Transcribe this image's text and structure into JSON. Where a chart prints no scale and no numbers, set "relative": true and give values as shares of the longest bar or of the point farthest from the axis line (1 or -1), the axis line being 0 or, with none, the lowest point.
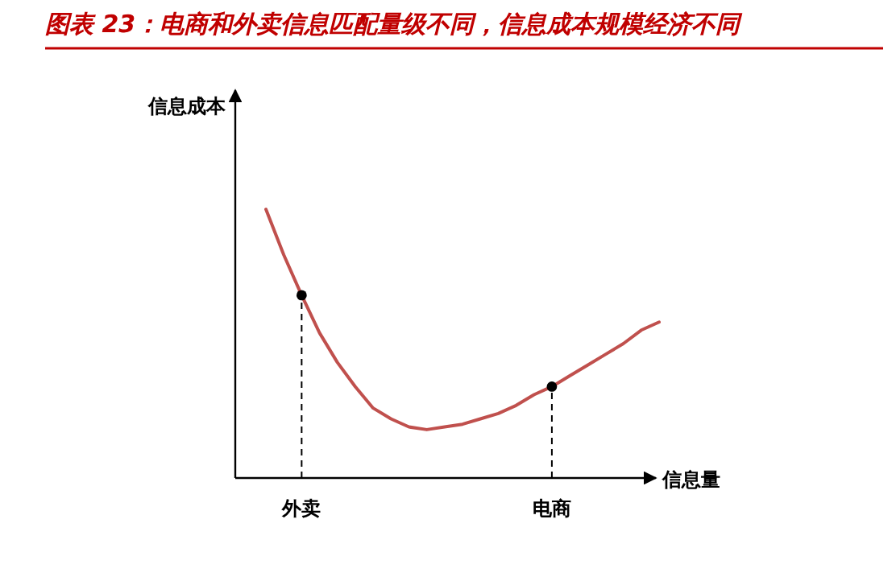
{
  "chart_data": {
    "type": "line",
    "relative": true,
    "title": "图表 23：电商和外卖信息匹配量级不同，信息成本规模经济不同",
    "xlabel": "信息量",
    "ylabel": "信息成本",
    "categories": [
      null,
      null,
      "外卖",
      null,
      null,
      null,
      null,
      null,
      null,
      null,
      null,
      null,
      null,
      null,
      null,
      null,
      "电商",
      null,
      null,
      null,
      null,
      null,
      null
    ],
    "series": [
      {
        "type": "line",
        "color": "#c0504d",
        "line_style": "solid",
        "values": [
          1.0,
          0.83,
          0.68,
          0.54,
          0.43,
          0.34,
          0.26,
          0.22,
          0.19,
          0.18,
          0.19,
          0.2,
          0.22,
          0.24,
          0.27,
          0.31,
          0.34,
          0.38,
          0.42,
          0.46,
          0.5,
          0.55,
          0.58
        ]
      },
      {
        "type": "lollipop",
        "color": "#000000",
        "line_style": "dashed",
        "marker": "circle",
        "values": [
          null,
          null,
          0.68,
          null,
          null,
          null,
          null,
          null,
          null,
          null,
          null,
          null,
          null,
          null,
          null,
          null,
          0.34,
          null,
          null,
          null,
          null,
          null,
          null
        ]
      }
    ]
  }
}
